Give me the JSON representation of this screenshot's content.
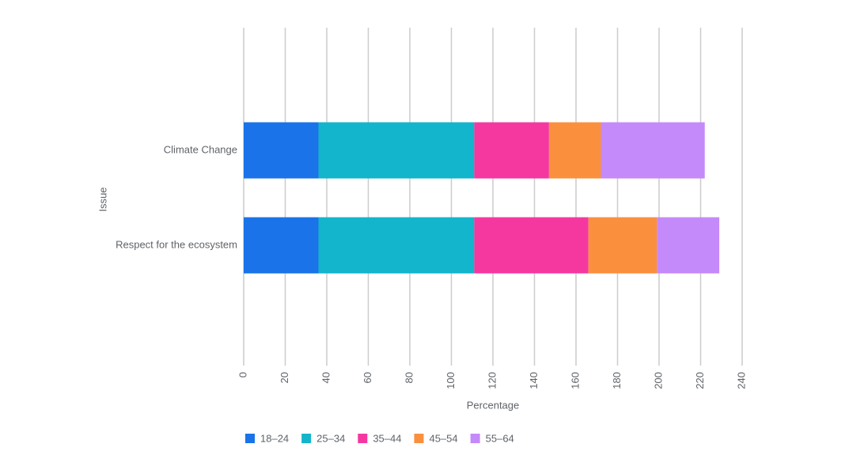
{
  "chart_data": {
    "type": "stacked-bar-horizontal",
    "categories": [
      "Climate Change",
      "Respect for the ecosystem"
    ],
    "series": [
      {
        "name": "18–24",
        "color": "#1a73e8",
        "values": [
          36,
          36
        ]
      },
      {
        "name": "25–34",
        "color": "#12b5cb",
        "values": [
          75,
          75
        ]
      },
      {
        "name": "35–44",
        "color": "#f538a0",
        "values": [
          36,
          55
        ]
      },
      {
        "name": "45–54",
        "color": "#fa903e",
        "values": [
          25,
          33
        ]
      },
      {
        "name": "55–64",
        "color": "#c58af9",
        "values": [
          50,
          30
        ]
      }
    ],
    "x_label": "Percentage",
    "y_label": "Issue",
    "xlim": [
      0,
      240
    ],
    "xticks": [
      0,
      20,
      40,
      60,
      80,
      100,
      120,
      140,
      160,
      180,
      200,
      220,
      240
    ],
    "grid": true,
    "legend": "bottom"
  }
}
